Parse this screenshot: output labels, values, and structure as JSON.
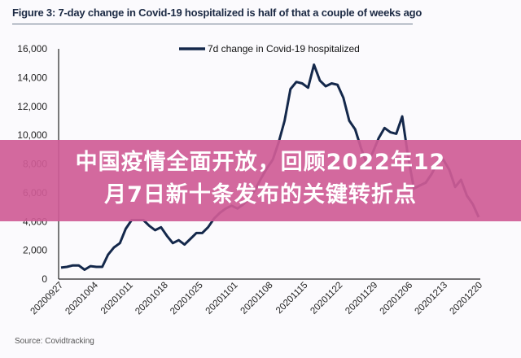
{
  "figure": {
    "title": "Figure 3: 7-day change in Covid-19 hospitalized is half of that a couple of weeks ago",
    "source": "Source: Covidtracking"
  },
  "banner": {
    "line1": "中国疫情全面开放，回顾2022年12",
    "line2": "月7日新十条发布的关键转折点",
    "color": "#cf5c96"
  },
  "chart_data": {
    "type": "line",
    "title": "Figure 3: 7-day change in Covid-19 hospitalized is half of that a couple of weeks ago",
    "xlabel": "",
    "ylabel": "",
    "ylim": [
      0,
      16000
    ],
    "yticks": [
      "0",
      "2,000",
      "4,000",
      "6,000",
      "8,000",
      "10,000",
      "12,000",
      "14,000",
      "16,000"
    ],
    "xticks": [
      "20200927",
      "20201004",
      "20201011",
      "20201018",
      "20201025",
      "20201101",
      "20201108",
      "20201115",
      "20201122",
      "20201129",
      "20201206",
      "20201213",
      "20201220"
    ],
    "grid": false,
    "legend_position": "top-center",
    "line_color": "#14284b",
    "series": [
      {
        "name": "7d change in Covid-19 hospitalized",
        "values": [
          800,
          850,
          950,
          950,
          650,
          900,
          850,
          850,
          1700,
          2200,
          2500,
          3500,
          4100,
          4100,
          4100,
          3700,
          3400,
          3600,
          3000,
          2500,
          2700,
          2400,
          2800,
          3200,
          3200,
          3600,
          4200,
          4600,
          4900,
          5100,
          4900,
          5200,
          5600,
          6200,
          7000,
          7700,
          8300,
          9500,
          11000,
          13200,
          13700,
          13600,
          13300,
          14900,
          13800,
          13400,
          13600,
          13500,
          12600,
          11000,
          10400,
          9100,
          8000,
          8800,
          9800,
          10500,
          10200,
          10100,
          11300,
          8500,
          6300,
          6500,
          6700,
          7300,
          8100,
          8300,
          7600,
          6400,
          6900,
          5800,
          5200,
          4300
        ]
      }
    ]
  }
}
